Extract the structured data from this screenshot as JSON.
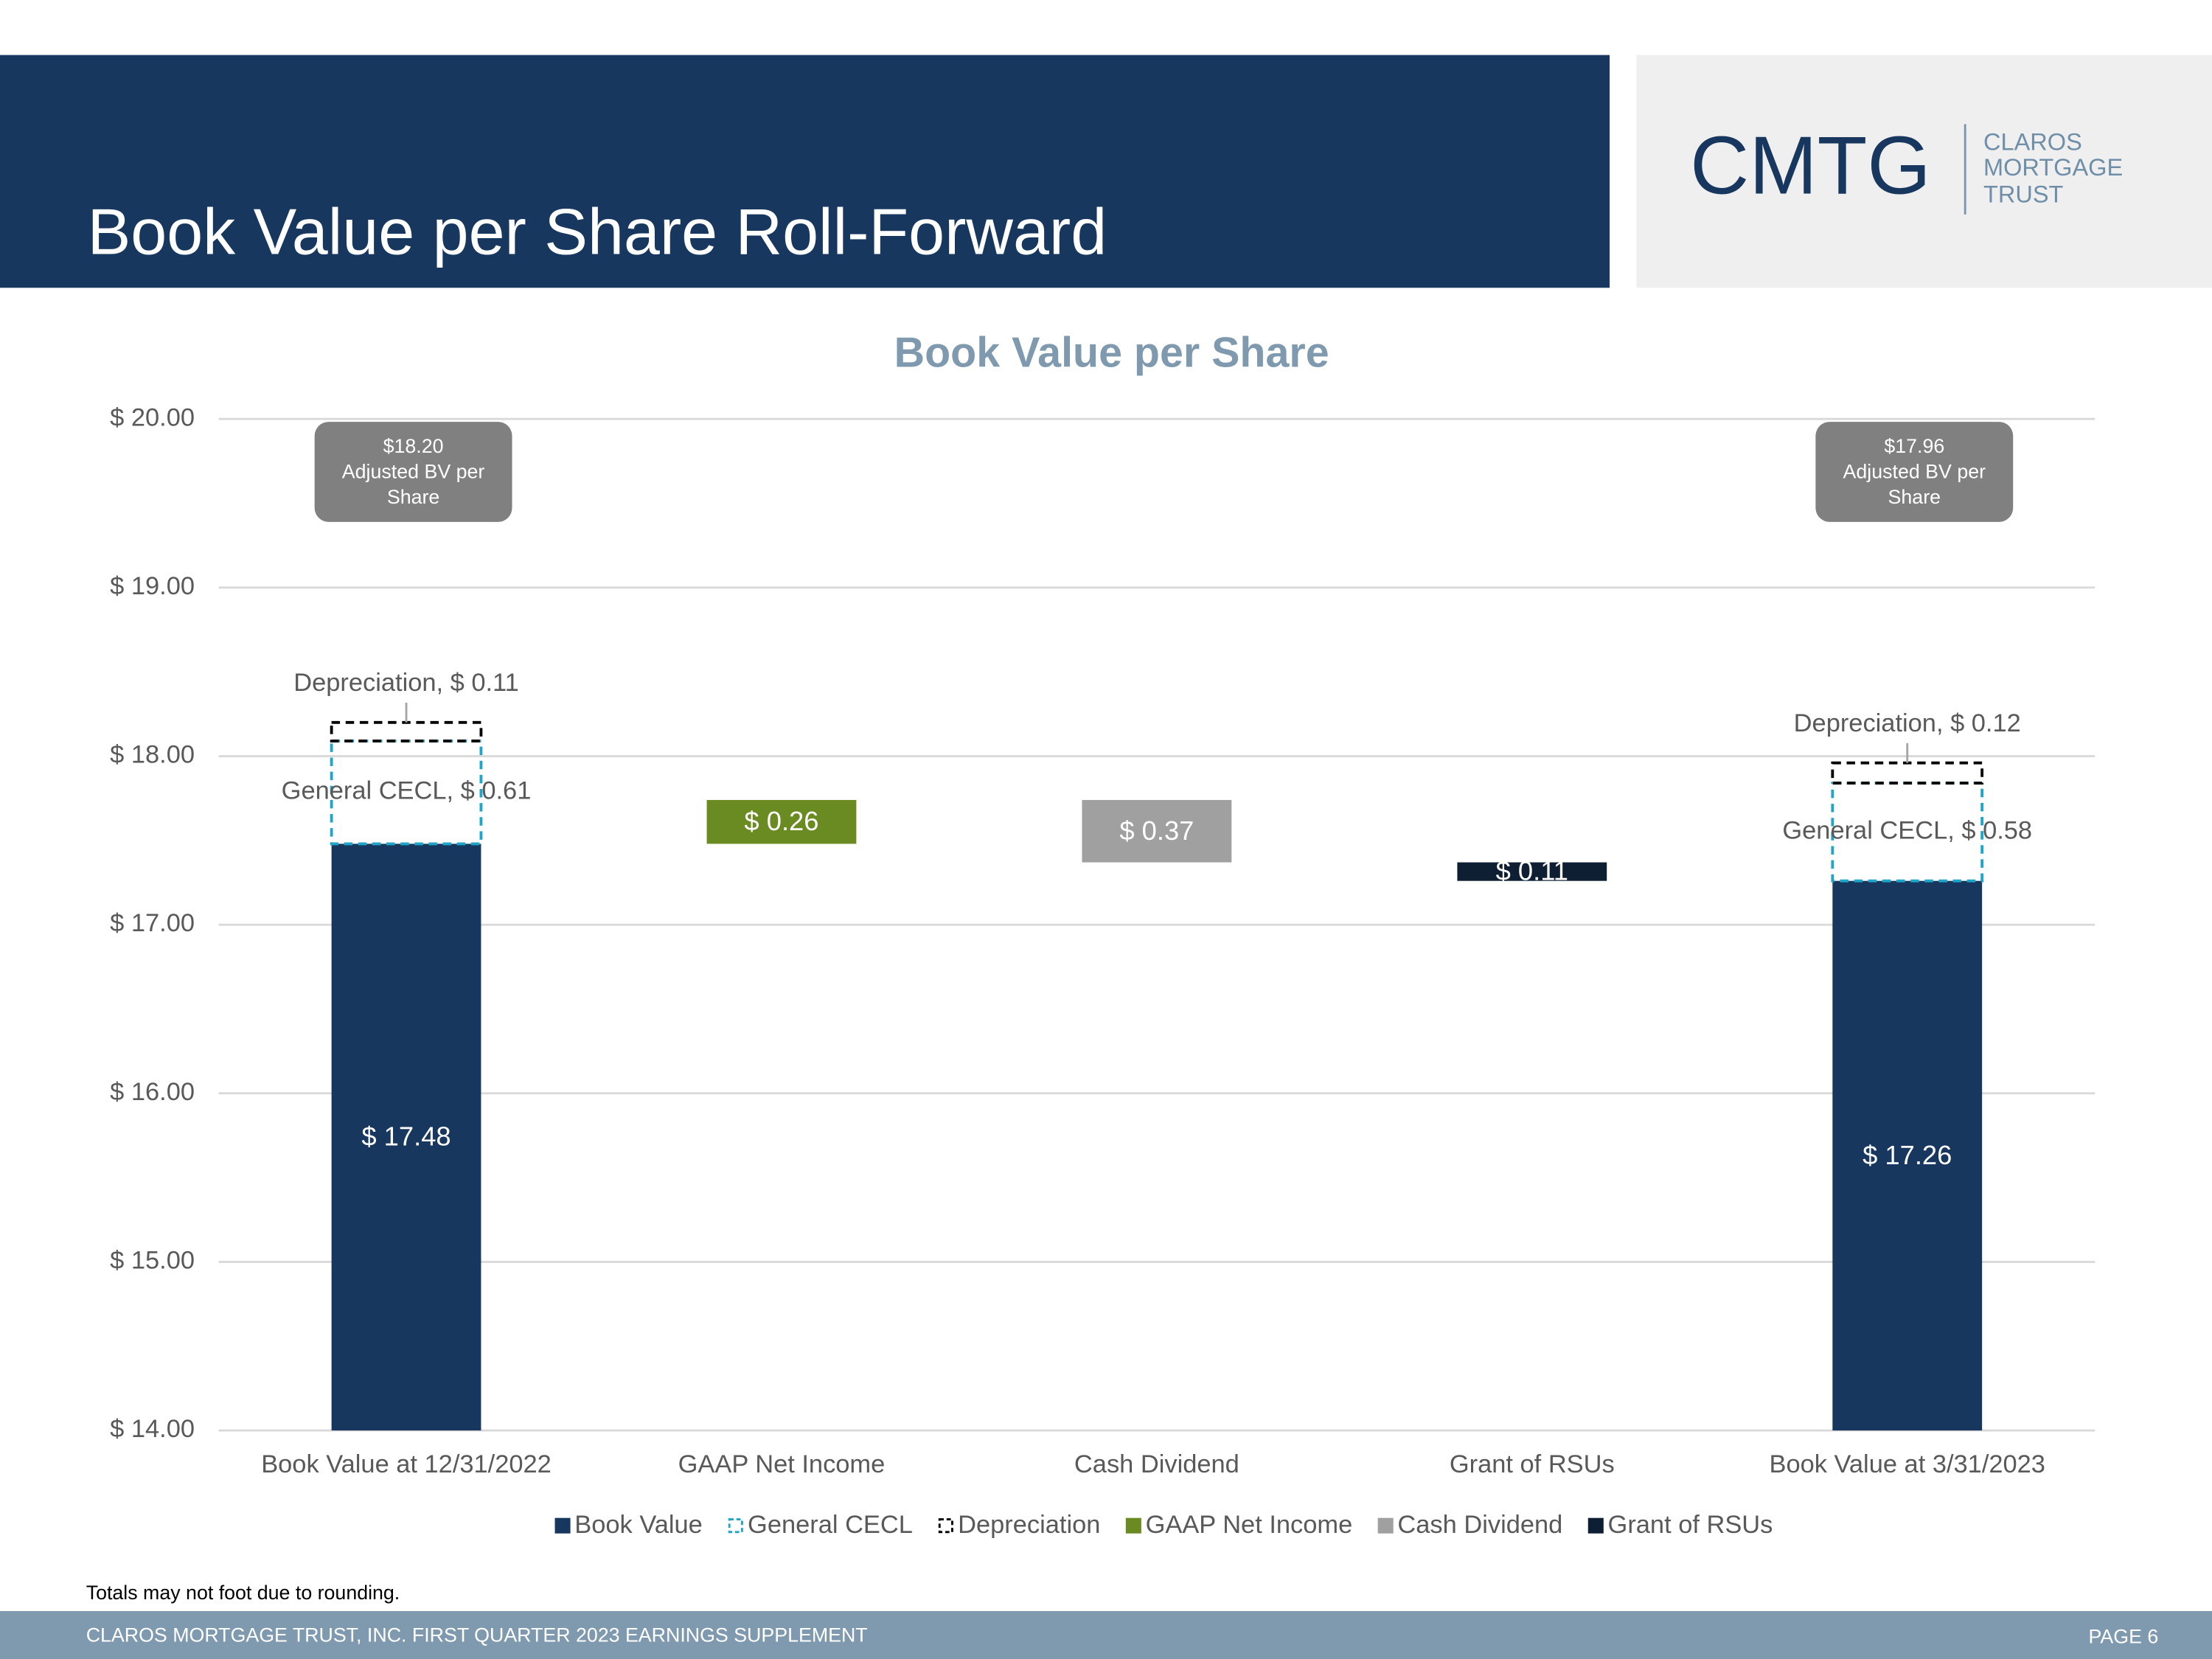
{
  "page": {
    "title": "Book Value per Share Roll-Forward",
    "logo": {
      "mark": "CMTG",
      "name_lines": [
        "CLAROS",
        "MORTGAGE",
        "TRUST"
      ]
    },
    "footnote": "Totals may not foot due to rounding.",
    "footer": "CLAROS MORTGAGE TRUST, INC. FIRST QUARTER 2023 EARNINGS SUPPLEMENT",
    "page_number": "PAGE 6"
  },
  "chart_data": {
    "type": "waterfall",
    "title": "Book Value per Share",
    "categories": [
      "Book Value at 12/31/2022",
      "GAAP Net Income",
      "Cash Dividend",
      "Grant of RSUs",
      "Book Value at 3/31/2023"
    ],
    "series": [
      {
        "name": "Book Value",
        "color": "#17375e",
        "values": [
          17.48,
          null,
          null,
          null,
          17.26
        ],
        "value_labels": [
          "$ 17.48",
          null,
          null,
          null,
          "$ 17.26"
        ]
      },
      {
        "name": "General CECL",
        "color": "#1fa5c7",
        "dashed": true,
        "values": [
          0.61,
          null,
          null,
          null,
          0.58
        ],
        "value_labels": [
          "General CECL, $ 0.61",
          null,
          null,
          null,
          "General CECL, $ 0.58"
        ]
      },
      {
        "name": "Depreciation",
        "color": "#000000",
        "dashed": true,
        "values": [
          0.11,
          null,
          null,
          null,
          0.12
        ],
        "value_labels": [
          "Depreciation, $ 0.11",
          null,
          null,
          null,
          "Depreciation, $ 0.12"
        ]
      },
      {
        "name": "GAAP Net Income",
        "color": "#6a8a22",
        "values": [
          null,
          0.26,
          null,
          null,
          null
        ],
        "value_labels": [
          null,
          "$ 0.26",
          null,
          null,
          null
        ]
      },
      {
        "name": "Cash Dividend",
        "color": "#a0a0a0",
        "values": [
          null,
          null,
          -0.37,
          null,
          null
        ],
        "value_labels": [
          null,
          null,
          "$ 0.37",
          null,
          null
        ]
      },
      {
        "name": "Grant of RSUs",
        "color": "#0e1f33",
        "values": [
          null,
          null,
          null,
          -0.11,
          null
        ],
        "value_labels": [
          null,
          null,
          null,
          "$ 0.11",
          null
        ]
      }
    ],
    "ylim": [
      14,
      20
    ],
    "yticks": [
      {
        "value": 14,
        "label": "$ 14.00"
      },
      {
        "value": 15,
        "label": "$ 15.00"
      },
      {
        "value": 16,
        "label": "$ 16.00"
      },
      {
        "value": 17,
        "label": "$ 17.00"
      },
      {
        "value": 18,
        "label": "$ 18.00"
      },
      {
        "value": 19,
        "label": "$ 19.00"
      },
      {
        "value": 20,
        "label": "$ 20.00"
      }
    ],
    "grid": true,
    "legend": "bottom",
    "annotations": [
      {
        "amount": "$18.20",
        "text": "Adjusted BV per Share"
      },
      {
        "amount": "$17.96",
        "text": "Adjusted BV per Share"
      }
    ]
  }
}
